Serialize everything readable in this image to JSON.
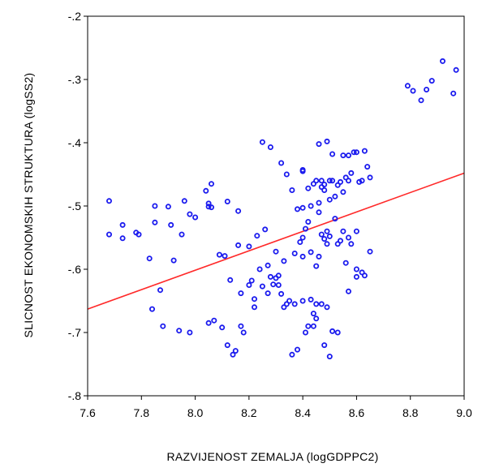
{
  "chart_data": {
    "type": "scatter",
    "title": "",
    "xlabel": "RAZVIJENOST ZEMALJA (logGDPPC2)",
    "ylabel": "SLICNOST EKONOMSKIH STRUKTURA (logSS2)",
    "xlim": [
      7.6,
      9.0
    ],
    "ylim": [
      -0.8,
      -0.2
    ],
    "x_ticks": [
      "7.6",
      "7.8",
      "8.0",
      "8.2",
      "8.4",
      "8.6",
      "8.8",
      "9.0"
    ],
    "y_ticks": [
      "-.2",
      "-.3",
      "-.4",
      "-.5",
      "-.6",
      "-.7",
      "-.8"
    ],
    "grid": false,
    "colors": {
      "points": "#1a1aee",
      "fit_line": "#ff2a2a",
      "frame": "#000000"
    },
    "fit_line": {
      "x": [
        7.6,
        9.0
      ],
      "y": [
        -0.663,
        -0.448
      ]
    },
    "points": [
      [
        7.68,
        -0.492
      ],
      [
        7.68,
        -0.545
      ],
      [
        7.73,
        -0.53
      ],
      [
        7.73,
        -0.551
      ],
      [
        7.78,
        -0.542
      ],
      [
        7.79,
        -0.545
      ],
      [
        7.83,
        -0.583
      ],
      [
        7.84,
        -0.663
      ],
      [
        7.85,
        -0.5
      ],
      [
        7.85,
        -0.526
      ],
      [
        7.87,
        -0.633
      ],
      [
        7.88,
        -0.69
      ],
      [
        7.9,
        -0.501
      ],
      [
        7.91,
        -0.53
      ],
      [
        7.92,
        -0.586
      ],
      [
        7.94,
        -0.697
      ],
      [
        7.95,
        -0.545
      ],
      [
        7.96,
        -0.492
      ],
      [
        7.98,
        -0.513
      ],
      [
        7.98,
        -0.7
      ],
      [
        8.0,
        -0.518
      ],
      [
        8.04,
        -0.476
      ],
      [
        8.05,
        -0.496
      ],
      [
        8.05,
        -0.501
      ],
      [
        8.05,
        -0.685
      ],
      [
        8.06,
        -0.465
      ],
      [
        8.06,
        -0.502
      ],
      [
        8.07,
        -0.681
      ],
      [
        8.09,
        -0.577
      ],
      [
        8.1,
        -0.692
      ],
      [
        8.11,
        -0.579
      ],
      [
        8.12,
        -0.493
      ],
      [
        8.12,
        -0.72
      ],
      [
        8.13,
        -0.617
      ],
      [
        8.14,
        -0.735
      ],
      [
        8.15,
        -0.729
      ],
      [
        8.16,
        -0.508
      ],
      [
        8.16,
        -0.562
      ],
      [
        8.17,
        -0.638
      ],
      [
        8.17,
        -0.69
      ],
      [
        8.18,
        -0.7
      ],
      [
        8.2,
        -0.564
      ],
      [
        8.2,
        -0.625
      ],
      [
        8.21,
        -0.618
      ],
      [
        8.22,
        -0.66
      ],
      [
        8.22,
        -0.647
      ],
      [
        8.23,
        -0.547
      ],
      [
        8.24,
        -0.6
      ],
      [
        8.25,
        -0.399
      ],
      [
        8.25,
        -0.627
      ],
      [
        8.26,
        -0.537
      ],
      [
        8.27,
        -0.594
      ],
      [
        8.27,
        -0.638
      ],
      [
        8.28,
        -0.407
      ],
      [
        8.28,
        -0.612
      ],
      [
        8.29,
        -0.624
      ],
      [
        8.3,
        -0.572
      ],
      [
        8.3,
        -0.614
      ],
      [
        8.31,
        -0.61
      ],
      [
        8.31,
        -0.625
      ],
      [
        8.32,
        -0.432
      ],
      [
        8.32,
        -0.639
      ],
      [
        8.33,
        -0.587
      ],
      [
        8.33,
        -0.66
      ],
      [
        8.34,
        -0.45
      ],
      [
        8.34,
        -0.655
      ],
      [
        8.35,
        -0.65
      ],
      [
        8.36,
        -0.475
      ],
      [
        8.36,
        -0.735
      ],
      [
        8.37,
        -0.575
      ],
      [
        8.37,
        -0.655
      ],
      [
        8.38,
        -0.727
      ],
      [
        8.38,
        -0.505
      ],
      [
        8.39,
        -0.557
      ],
      [
        8.4,
        -0.443
      ],
      [
        8.4,
        -0.445
      ],
      [
        8.4,
        -0.55
      ],
      [
        8.4,
        -0.503
      ],
      [
        8.4,
        -0.58
      ],
      [
        8.4,
        -0.65
      ],
      [
        8.41,
        -0.7
      ],
      [
        8.41,
        -0.536
      ],
      [
        8.42,
        -0.525
      ],
      [
        8.42,
        -0.472
      ],
      [
        8.42,
        -0.69
      ],
      [
        8.43,
        -0.5
      ],
      [
        8.43,
        -0.648
      ],
      [
        8.43,
        -0.573
      ],
      [
        8.44,
        -0.465
      ],
      [
        8.44,
        -0.67
      ],
      [
        8.44,
        -0.69
      ],
      [
        8.45,
        -0.46
      ],
      [
        8.45,
        -0.595
      ],
      [
        8.45,
        -0.655
      ],
      [
        8.45,
        -0.678
      ],
      [
        8.46,
        -0.402
      ],
      [
        8.46,
        -0.51
      ],
      [
        8.46,
        -0.495
      ],
      [
        8.46,
        -0.58
      ],
      [
        8.47,
        -0.46
      ],
      [
        8.47,
        -0.47
      ],
      [
        8.47,
        -0.545
      ],
      [
        8.47,
        -0.655
      ],
      [
        8.48,
        -0.466
      ],
      [
        8.48,
        -0.475
      ],
      [
        8.48,
        -0.72
      ],
      [
        8.48,
        -0.552
      ],
      [
        8.49,
        -0.398
      ],
      [
        8.49,
        -0.54
      ],
      [
        8.49,
        -0.56
      ],
      [
        8.49,
        -0.66
      ],
      [
        8.5,
        -0.46
      ],
      [
        8.5,
        -0.738
      ],
      [
        8.5,
        -0.49
      ],
      [
        8.5,
        -0.548
      ],
      [
        8.51,
        -0.418
      ],
      [
        8.51,
        -0.46
      ],
      [
        8.51,
        -0.698
      ],
      [
        8.52,
        -0.52
      ],
      [
        8.52,
        -0.485
      ],
      [
        8.53,
        -0.467
      ],
      [
        8.53,
        -0.56
      ],
      [
        8.53,
        -0.7
      ],
      [
        8.54,
        -0.462
      ],
      [
        8.54,
        -0.555
      ],
      [
        8.55,
        -0.42
      ],
      [
        8.55,
        -0.478
      ],
      [
        8.55,
        -0.54
      ],
      [
        8.56,
        -0.455
      ],
      [
        8.56,
        -0.59
      ],
      [
        8.57,
        -0.42
      ],
      [
        8.57,
        -0.46
      ],
      [
        8.57,
        -0.55
      ],
      [
        8.57,
        -0.635
      ],
      [
        8.58,
        -0.448
      ],
      [
        8.58,
        -0.56
      ],
      [
        8.59,
        -0.415
      ],
      [
        8.6,
        -0.415
      ],
      [
        8.6,
        -0.54
      ],
      [
        8.6,
        -0.6
      ],
      [
        8.6,
        -0.612
      ],
      [
        8.61,
        -0.462
      ],
      [
        8.62,
        -0.46
      ],
      [
        8.62,
        -0.605
      ],
      [
        8.63,
        -0.413
      ],
      [
        8.63,
        -0.61
      ],
      [
        8.64,
        -0.438
      ],
      [
        8.65,
        -0.455
      ],
      [
        8.65,
        -0.572
      ],
      [
        8.79,
        -0.31
      ],
      [
        8.81,
        -0.318
      ],
      [
        8.84,
        -0.333
      ],
      [
        8.86,
        -0.316
      ],
      [
        8.88,
        -0.302
      ],
      [
        8.92,
        -0.271
      ],
      [
        8.96,
        -0.322
      ],
      [
        8.97,
        -0.285
      ]
    ]
  }
}
